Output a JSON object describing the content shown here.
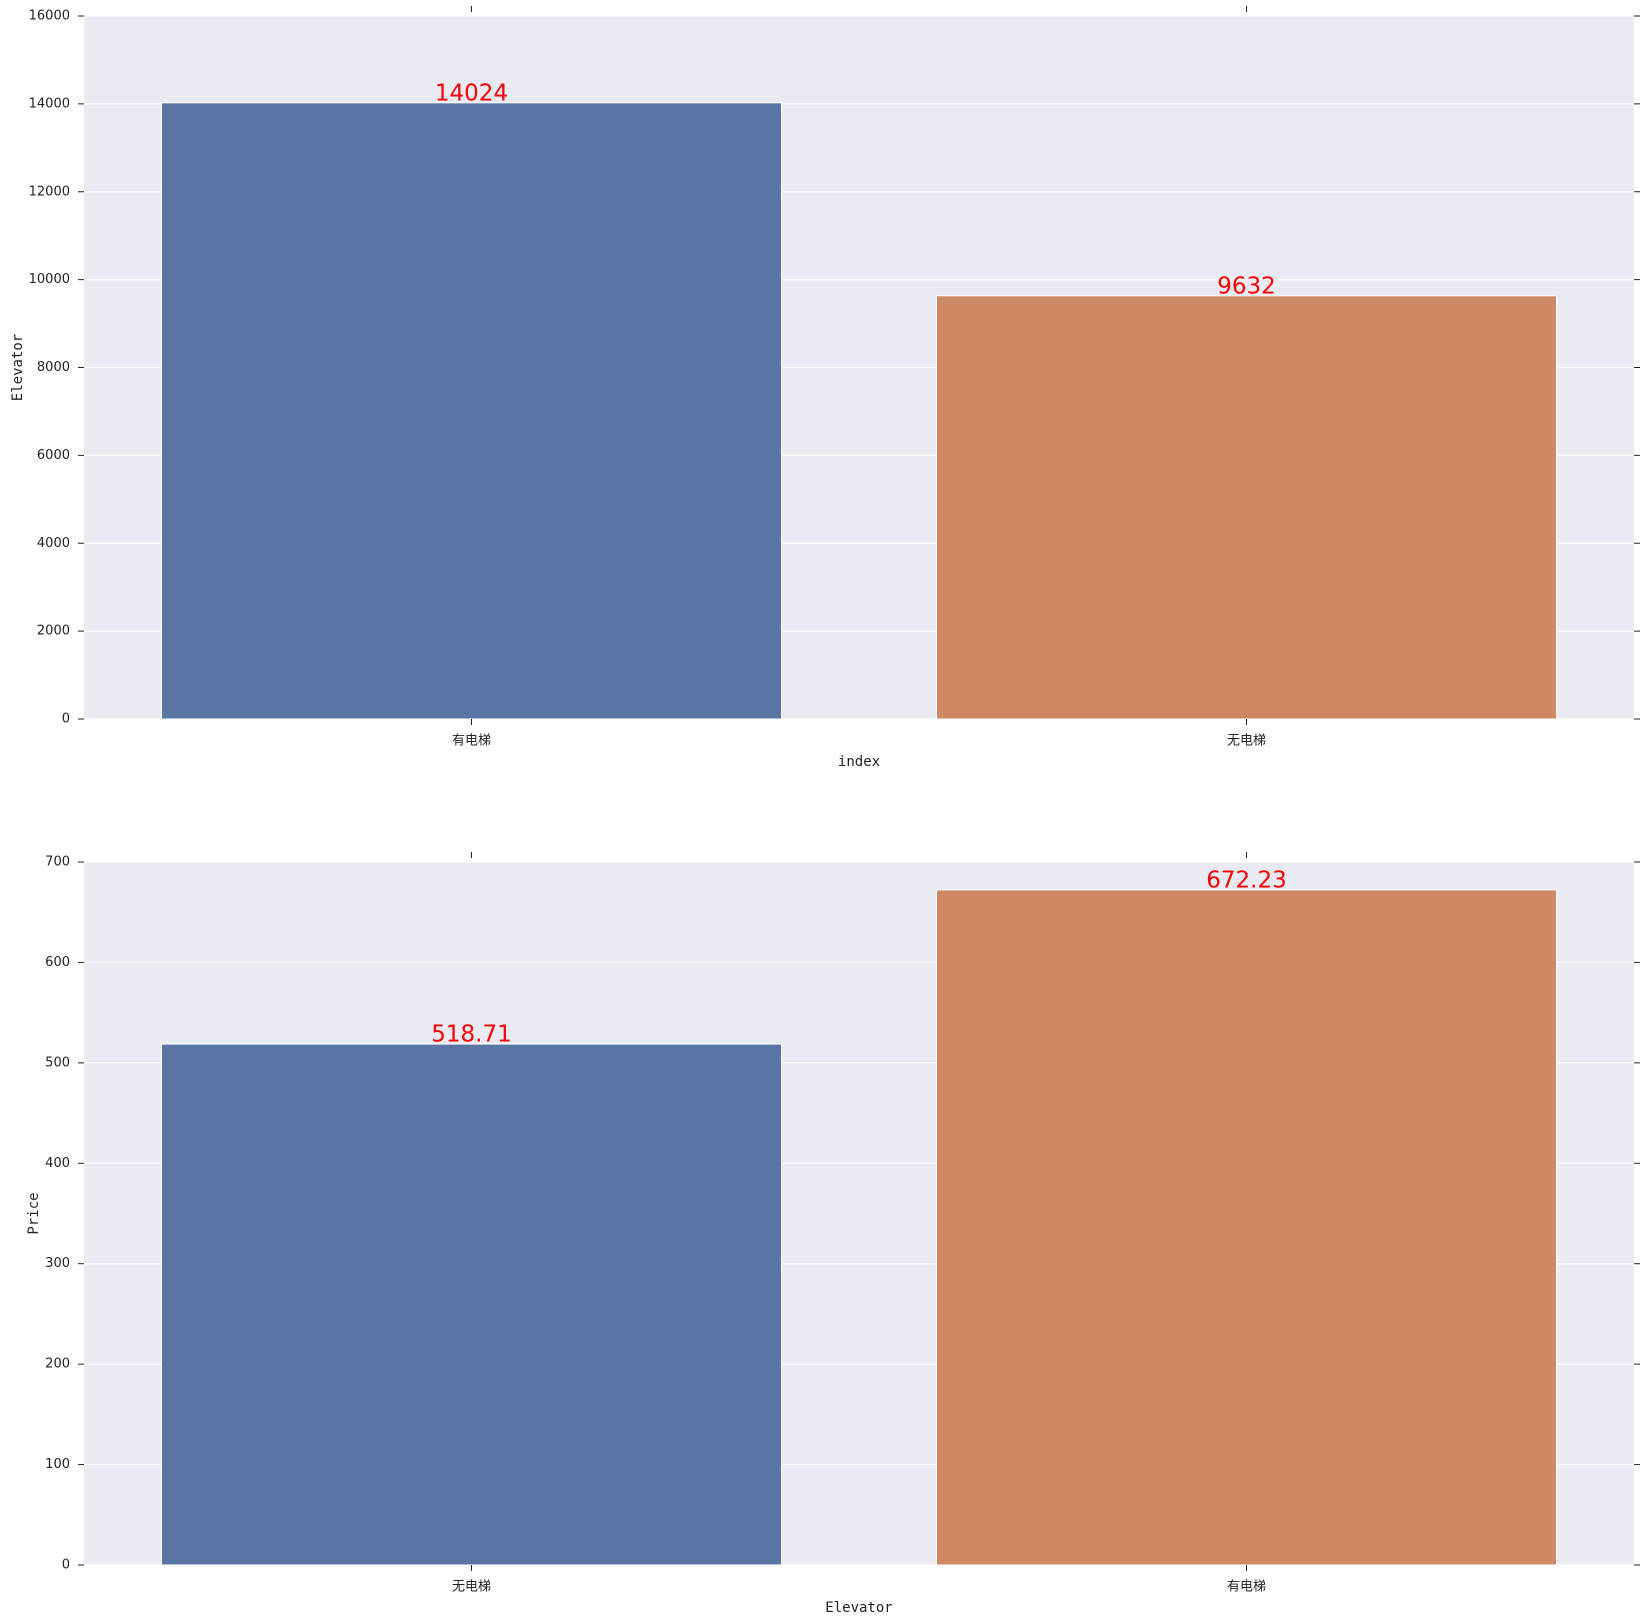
{
  "chart_data": [
    {
      "type": "bar",
      "categories": [
        "有电梯",
        "无电梯"
      ],
      "values": [
        14024,
        9632
      ],
      "colors": [
        "#5975a4",
        "#cc8963"
      ],
      "ylim": [
        0,
        16000
      ],
      "yticks": [
        0,
        2000,
        4000,
        6000,
        8000,
        10000,
        12000,
        14000,
        16000
      ],
      "xlabel": "index",
      "ylabel": "Elevator",
      "grid": true,
      "value_label_color": "#ff0000"
    },
    {
      "type": "bar",
      "categories": [
        "无电梯",
        "有电梯"
      ],
      "values": [
        518.71,
        672.23
      ],
      "colors": [
        "#5975a4",
        "#cc8963"
      ],
      "ylim": [
        0,
        700
      ],
      "yticks": [
        0,
        100,
        200,
        300,
        400,
        500,
        600,
        700
      ],
      "xlabel": "Elevator",
      "ylabel": "Price",
      "grid": true,
      "value_label_color": "#ff0000"
    }
  ]
}
